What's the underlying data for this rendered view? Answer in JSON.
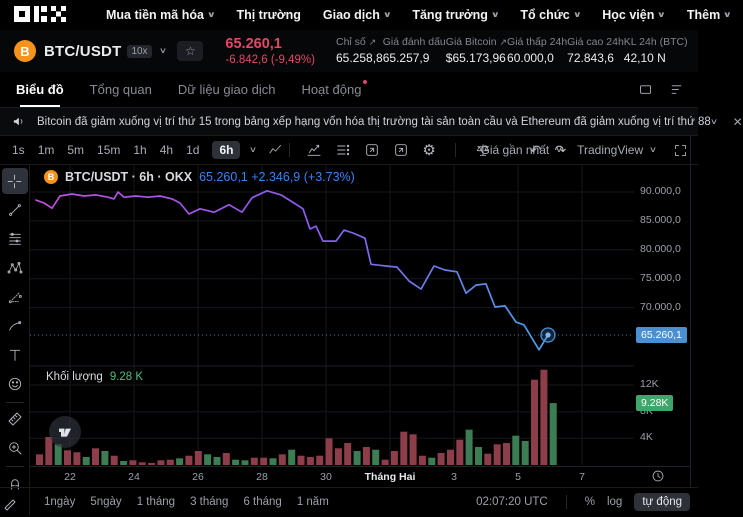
{
  "nav": {
    "logo": "OKX",
    "items": [
      {
        "label": "Mua tiền mã hóa",
        "caret": true
      },
      {
        "label": "Thị trường",
        "caret": false
      },
      {
        "label": "Giao dịch",
        "caret": true
      },
      {
        "label": "Tăng trưởng",
        "caret": true
      },
      {
        "label": "Tổ chức",
        "caret": true
      },
      {
        "label": "Học viện",
        "caret": true
      },
      {
        "label": "Thêm",
        "caret": true
      }
    ]
  },
  "ticker": {
    "symbol": "BTC/USDT",
    "leverage": "10x",
    "price": "65.260,1",
    "change": "-6.842,6 (-9,49%)",
    "stats": [
      {
        "label": "Chỉ số",
        "link": true,
        "value": "65.258,8"
      },
      {
        "label": "Giá đánh dấu",
        "link": false,
        "value": "65.257,9"
      },
      {
        "label": "Giá Bitcoin",
        "link": true,
        "value": "$65.173,96"
      },
      {
        "label": "Giá thấp 24h",
        "link": false,
        "value": "60.000,0"
      },
      {
        "label": "Giá cao 24h",
        "link": false,
        "value": "72.843,6"
      },
      {
        "label": "KL 24h (BTC)",
        "link": false,
        "value": "42,10 N"
      }
    ]
  },
  "tabs": [
    {
      "label": "Biểu đồ",
      "active": true,
      "dot": false
    },
    {
      "label": "Tổng quan",
      "active": false,
      "dot": false
    },
    {
      "label": "Dữ liệu giao dịch",
      "active": false,
      "dot": false
    },
    {
      "label": "Hoạt động",
      "active": false,
      "dot": true
    }
  ],
  "news": {
    "text": "Bitcoin đã giảm xuống vị trí thứ 15 trong bảng xếp hạng vốn hóa thị trường tài sản toàn cầu và Ethereum đã giảm xuống vị trí thứ 88"
  },
  "chart_toolbar": {
    "timeframes": [
      "1s",
      "1m",
      "5m",
      "15m",
      "1h",
      "4h",
      "1d",
      "6h"
    ],
    "active_timeframe": "6h",
    "icons": [
      "indicators",
      "metrics",
      "template",
      "save-layout",
      "settings-gear",
      "|",
      "alert-scale",
      "|",
      "undo",
      "redo"
    ],
    "price_mode": "Giá gần nhất",
    "vendor": "TradingView"
  },
  "legend": {
    "title": "BTC/USDT · 6h · OKX",
    "price": "65.260,1",
    "change": "+2.346,9 (+3.73%)"
  },
  "volume_legend": {
    "label": "Khối lượng",
    "value": "9.28 K"
  },
  "left_toolbar": [
    "crosshair",
    "trend-line",
    "fib-retracement",
    "xabcd-pattern",
    "forecast",
    "brush",
    "text",
    "emoji",
    "|",
    "ruler",
    "zoom-in",
    "|",
    "magnet"
  ],
  "chart_data": [
    {
      "type": "line",
      "name": "BTC/USDT price (6h)",
      "title": "BTC/USDT · 6h · OKX",
      "current_price": 65260.1,
      "current_price_label": "65.260,1",
      "change_label": "+2.346,9 (+3.73%)",
      "ylim": [
        60000,
        95000
      ],
      "y_gridlines": [
        90000,
        85000,
        80000,
        75000,
        70000
      ],
      "y_tick_labels": [
        "90.000,0",
        "85.000,0",
        "80.000,0",
        "75.000,0",
        "70.000,0"
      ],
      "grid": true,
      "points": [
        [
          6,
          88600
        ],
        [
          14,
          88100
        ],
        [
          22,
          87200
        ],
        [
          30,
          89300
        ],
        [
          42,
          89650
        ],
        [
          54,
          89300
        ],
        [
          66,
          89500
        ],
        [
          78,
          89100
        ],
        [
          84,
          88800
        ],
        [
          88,
          90000
        ],
        [
          94,
          89100
        ],
        [
          106,
          89300
        ],
        [
          118,
          89100
        ],
        [
          130,
          89300
        ],
        [
          142,
          88800
        ],
        [
          150,
          88100
        ],
        [
          159,
          86200
        ],
        [
          170,
          87100
        ],
        [
          184,
          86500
        ],
        [
          199,
          87800
        ],
        [
          212,
          86500
        ],
        [
          222,
          89000
        ],
        [
          237,
          90200
        ],
        [
          251,
          89500
        ],
        [
          264,
          88100
        ],
        [
          273,
          87100
        ],
        [
          280,
          83600
        ],
        [
          286,
          84100
        ],
        [
          293,
          81500
        ],
        [
          306,
          81500
        ],
        [
          314,
          83400
        ],
        [
          323,
          82900
        ],
        [
          335,
          82000
        ],
        [
          341,
          77500
        ],
        [
          356,
          77200
        ],
        [
          367,
          77000
        ],
        [
          379,
          74600
        ],
        [
          391,
          73200
        ],
        [
          404,
          77200
        ],
        [
          415,
          76500
        ],
        [
          427,
          76200
        ],
        [
          436,
          72500
        ],
        [
          446,
          73900
        ],
        [
          456,
          74100
        ],
        [
          465,
          70100
        ],
        [
          475,
          70300
        ],
        [
          486,
          67500
        ],
        [
          494,
          67000
        ],
        [
          502,
          64700
        ],
        [
          509,
          62700
        ],
        [
          518,
          65260
        ]
      ]
    },
    {
      "type": "bar",
      "name": "Khối lượng (nghìn)",
      "current_value": 9.28,
      "current_value_label": "9.28K",
      "ylim": [
        0,
        15
      ],
      "y_ticks": [
        4,
        8,
        12
      ],
      "y_tick_labels": [
        "4K",
        "8K",
        "12K"
      ],
      "bars": [
        [
          1.6,
          "r"
        ],
        [
          4.2,
          "r"
        ],
        [
          3.1,
          "g"
        ],
        [
          2.2,
          "r"
        ],
        [
          1.9,
          "r"
        ],
        [
          1.2,
          "g"
        ],
        [
          2.5,
          "r"
        ],
        [
          2.1,
          "g"
        ],
        [
          1.4,
          "r"
        ],
        [
          0.6,
          "g"
        ],
        [
          0.7,
          "r"
        ],
        [
          0.4,
          "r"
        ],
        [
          0.3,
          "r"
        ],
        [
          0.7,
          "r"
        ],
        [
          0.8,
          "r"
        ],
        [
          1.0,
          "g"
        ],
        [
          1.4,
          "r"
        ],
        [
          2.1,
          "r"
        ],
        [
          1.6,
          "g"
        ],
        [
          1.2,
          "g"
        ],
        [
          1.8,
          "r"
        ],
        [
          0.8,
          "g"
        ],
        [
          0.7,
          "g"
        ],
        [
          1.1,
          "r"
        ],
        [
          1.1,
          "r"
        ],
        [
          1.0,
          "g"
        ],
        [
          1.6,
          "r"
        ],
        [
          2.3,
          "g"
        ],
        [
          1.4,
          "r"
        ],
        [
          1.2,
          "r"
        ],
        [
          1.4,
          "r"
        ],
        [
          4.0,
          "r"
        ],
        [
          2.5,
          "r"
        ],
        [
          3.3,
          "r"
        ],
        [
          2.1,
          "g"
        ],
        [
          2.7,
          "r"
        ],
        [
          2.3,
          "g"
        ],
        [
          0.8,
          "r"
        ],
        [
          2.1,
          "r"
        ],
        [
          5.0,
          "r"
        ],
        [
          4.6,
          "r"
        ],
        [
          1.4,
          "r"
        ],
        [
          1.1,
          "g"
        ],
        [
          1.8,
          "r"
        ],
        [
          2.3,
          "r"
        ],
        [
          3.8,
          "r"
        ],
        [
          5.3,
          "g"
        ],
        [
          2.7,
          "g"
        ],
        [
          1.7,
          "r"
        ],
        [
          3.1,
          "r"
        ],
        [
          3.3,
          "r"
        ],
        [
          4.4,
          "g"
        ],
        [
          3.6,
          "g"
        ],
        [
          12.8,
          "r"
        ],
        [
          14.3,
          "r"
        ],
        [
          9.28,
          "g"
        ]
      ]
    }
  ],
  "x_axis": {
    "labels": [
      {
        "label": "22",
        "x": 40,
        "em": false
      },
      {
        "label": "24",
        "x": 104,
        "em": false
      },
      {
        "label": "26",
        "x": 168,
        "em": false
      },
      {
        "label": "28",
        "x": 232,
        "em": false
      },
      {
        "label": "30",
        "x": 296,
        "em": false
      },
      {
        "label": "Tháng Hai",
        "x": 360,
        "em": true
      },
      {
        "label": "3",
        "x": 424,
        "em": false
      },
      {
        "label": "5",
        "x": 488,
        "em": false
      },
      {
        "label": "7",
        "x": 552,
        "em": false
      }
    ]
  },
  "bottom": {
    "ranges": [
      "1ngày",
      "5ngày",
      "1 tháng",
      "3 tháng",
      "6 tháng",
      "1 năm"
    ],
    "clock": "02:07:20 UTC",
    "percent": "%",
    "log": "log",
    "auto": "tự động"
  },
  "colors": {
    "down_red": "#e14a66",
    "up_green": "#3fa56b",
    "legend_blue": "#3982f7",
    "price_badge": "#4a8fd0",
    "vol_badge": "#3fa56b",
    "vol_red": "#8e3d4a",
    "vol_green": "#3c7d54",
    "line_start": "#c44fd9",
    "line_end": "#4aa0e8",
    "grid": "#15171d",
    "axis_text": "#9aa0aa"
  }
}
